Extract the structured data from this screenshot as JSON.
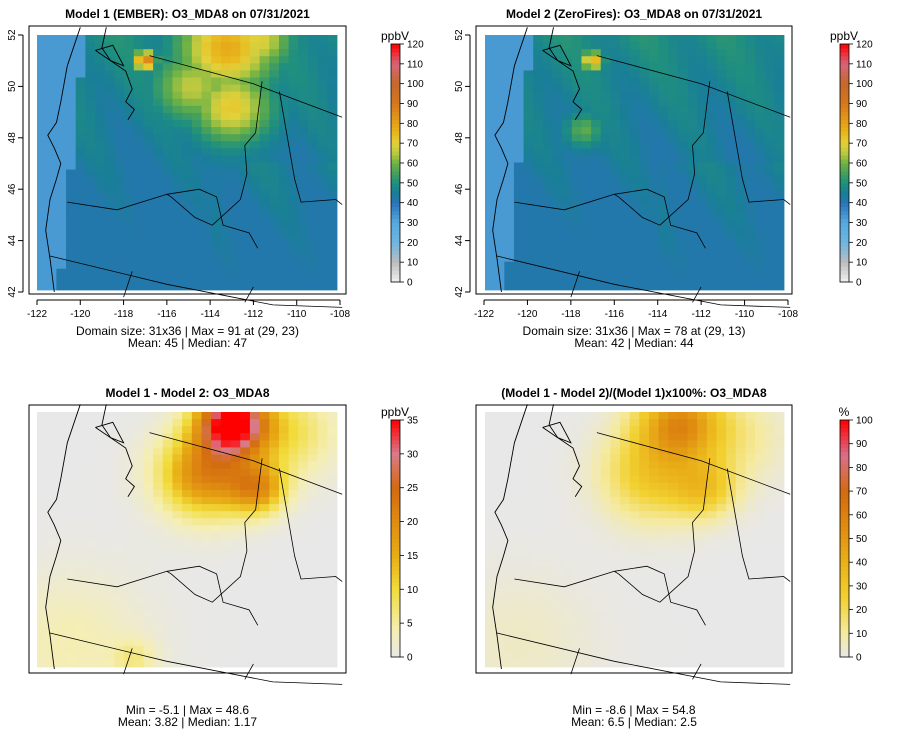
{
  "colors": {
    "ocean": "#56aadf",
    "land_mid": "#1f8f8f",
    "diff_bg": "#e6e6e6",
    "frame": "#000000"
  },
  "chart_data": [
    {
      "type": "heatmap",
      "title": "Model 1 (EMBER): O3_MDA8 on 07/31/2021",
      "legend_unit": "ppbV",
      "xlim": [
        -122,
        -108
      ],
      "ylim": [
        42,
        52
      ],
      "xticks": [
        -122,
        -120,
        -118,
        -116,
        -114,
        -112,
        -110,
        -108
      ],
      "yticks": [
        42,
        44,
        46,
        48,
        50,
        52
      ],
      "colorbar_ticks": [
        0,
        10,
        20,
        30,
        40,
        50,
        60,
        70,
        80,
        90,
        100,
        110,
        120
      ],
      "stats": [
        "Domain size: 31x36 | Max = 91 at (29, 23)",
        "Mean: 45 |  Median: 47"
      ],
      "summary": {
        "grid_cols": 31,
        "grid_rows": 36,
        "max": 91,
        "max_at": [
          29,
          23
        ],
        "mean": 45,
        "median": 47
      },
      "hotspots": [
        {
          "lon": -113.2,
          "lat": 51.5,
          "value": 78,
          "sigma": 1.6
        },
        {
          "lon": -113.0,
          "lat": 49.2,
          "value": 72,
          "sigma": 1.3
        },
        {
          "lon": -111.8,
          "lat": 51.8,
          "value": 70,
          "sigma": 1.1
        },
        {
          "lon": -114.8,
          "lat": 50.0,
          "value": 66,
          "sigma": 1.3
        },
        {
          "lon": -117.0,
          "lat": 51.0,
          "value": 90,
          "sigma": 0.35
        }
      ]
    },
    {
      "type": "heatmap",
      "title": "Model 2 (ZeroFires): O3_MDA8 on 07/31/2021",
      "legend_unit": "ppbV",
      "xlim": [
        -122,
        -108
      ],
      "ylim": [
        42,
        52
      ],
      "xticks": [
        -122,
        -120,
        -118,
        -116,
        -114,
        -112,
        -110,
        -108
      ],
      "yticks": [
        42,
        44,
        46,
        48,
        50,
        52
      ],
      "colorbar_ticks": [
        0,
        10,
        20,
        30,
        40,
        50,
        60,
        70,
        80,
        90,
        100,
        110,
        120
      ],
      "stats": [
        "Domain size: 31x36 | Max = 78 at (29, 13)",
        "Mean: 42 |  Median: 44"
      ],
      "summary": {
        "grid_cols": 31,
        "grid_rows": 36,
        "max": 78,
        "max_at": [
          29,
          13
        ],
        "mean": 42,
        "median": 44
      },
      "hotspots": [
        {
          "lon": -117.0,
          "lat": 51.0,
          "value": 78,
          "sigma": 0.35
        },
        {
          "lon": -117.4,
          "lat": 48.3,
          "value": 58,
          "sigma": 0.6
        }
      ]
    },
    {
      "type": "heatmap",
      "title": "Model 1 - Model 2: O3_MDA8",
      "legend_unit": "ppbV",
      "colorbar_ticks": [
        0,
        5,
        10,
        15,
        20,
        25,
        30,
        35
      ],
      "stats": [
        "Min = -5.1 | Max = 48.6",
        "Mean: 3.82 |  Median: 1.17"
      ],
      "summary": {
        "min": -5.1,
        "max": 48.6,
        "mean": 3.82,
        "median": 1.17
      },
      "hotspots": [
        {
          "lon": -113.0,
          "lat": 51.6,
          "value": 36,
          "sigma": 1.1
        },
        {
          "lon": -114.2,
          "lat": 49.6,
          "value": 21,
          "sigma": 1.5
        },
        {
          "lon": -111.8,
          "lat": 49.0,
          "value": 16,
          "sigma": 0.9
        },
        {
          "lon": -110.5,
          "lat": 51.2,
          "value": 9,
          "sigma": 1.6
        },
        {
          "lon": -120.5,
          "lat": 43.0,
          "value": 4,
          "sigma": 2.5
        },
        {
          "lon": -117.5,
          "lat": 42.4,
          "value": 5,
          "sigma": 0.7
        }
      ]
    },
    {
      "type": "heatmap",
      "title": "(Model 1 - Model 2)/(Model 1)x100%: O3_MDA8",
      "legend_unit": "%",
      "colorbar_ticks": [
        0,
        10,
        20,
        30,
        40,
        50,
        60,
        70,
        80,
        90,
        100
      ],
      "stats": [
        "Min = -8.6 | Max = 54.8",
        "Mean: 6.5 |  Median: 2.5"
      ],
      "summary": {
        "min": -8.6,
        "max": 54.8,
        "mean": 6.5,
        "median": 2.5
      },
      "hotspots": [
        {
          "lon": -113.0,
          "lat": 51.6,
          "value": 50,
          "sigma": 1.3
        },
        {
          "lon": -114.2,
          "lat": 49.6,
          "value": 30,
          "sigma": 1.6
        },
        {
          "lon": -111.8,
          "lat": 49.0,
          "value": 25,
          "sigma": 1.0
        },
        {
          "lon": -110.5,
          "lat": 51.0,
          "value": 12,
          "sigma": 1.6
        },
        {
          "lon": -120.5,
          "lat": 43.0,
          "value": 5,
          "sigma": 2.5
        }
      ]
    }
  ]
}
